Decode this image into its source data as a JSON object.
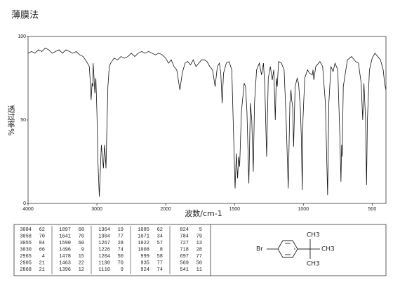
{
  "title": "薄膜法",
  "chart_data": {
    "type": "line",
    "x_label": "波数/cm-1",
    "y_label": "透过率%",
    "xlim": [
      4000,
      400
    ],
    "x_scale_break": 2000,
    "xticks": [
      4000,
      3000,
      2000,
      1500,
      1000,
      500
    ],
    "ylim": [
      0,
      100
    ],
    "yticks": [
      0,
      50,
      100
    ],
    "color": "#111111",
    "x": [
      4000,
      3950,
      3900,
      3850,
      3800,
      3750,
      3700,
      3650,
      3600,
      3550,
      3500,
      3450,
      3400,
      3350,
      3300,
      3250,
      3200,
      3150,
      3110,
      3095,
      3084,
      3070,
      3058,
      3055,
      3045,
      3030,
      3015,
      3000,
      2985,
      2965,
      2950,
      2935,
      2920,
      2905,
      2890,
      2880,
      2868,
      2855,
      2840,
      2820,
      2800,
      2750,
      2700,
      2650,
      2600,
      2550,
      2500,
      2450,
      2400,
      2350,
      2300,
      2250,
      2200,
      2150,
      2100,
      2050,
      2000,
      1980,
      1960,
      1940,
      1920,
      1897,
      1880,
      1860,
      1840,
      1820,
      1800,
      1780,
      1760,
      1740,
      1720,
      1700,
      1680,
      1660,
      1641,
      1625,
      1610,
      1600,
      1590,
      1580,
      1560,
      1540,
      1520,
      1510,
      1496,
      1487,
      1478,
      1470,
      1463,
      1450,
      1430,
      1420,
      1410,
      1396,
      1385,
      1375,
      1364,
      1355,
      1340,
      1320,
      1304,
      1290,
      1280,
      1267,
      1255,
      1240,
      1226,
      1215,
      1204,
      1197,
      1190,
      1180,
      1160,
      1140,
      1125,
      1110,
      1098,
      1090,
      1085,
      1078,
      1071,
      1060,
      1045,
      1035,
      1022,
      1015,
      1008,
      1003,
      999,
      990,
      970,
      955,
      935,
      930,
      924,
      910,
      880,
      860,
      840,
      824,
      815,
      800,
      784,
      770,
      750,
      735,
      727,
      722,
      718,
      710,
      697,
      680,
      650,
      620,
      600,
      580,
      569,
      560,
      548,
      541,
      535,
      520,
      500,
      480,
      460,
      440,
      420,
      410,
      400
    ],
    "values": [
      90,
      91,
      90,
      92,
      91,
      93,
      92,
      90,
      91,
      92,
      90,
      92,
      91,
      90,
      91,
      89,
      88,
      85,
      82,
      72,
      62,
      72,
      70,
      84,
      78,
      66,
      75,
      55,
      25,
      4,
      20,
      35,
      28,
      21,
      35,
      30,
      21,
      45,
      70,
      82,
      84,
      87,
      86,
      88,
      87,
      88,
      90,
      88,
      90,
      91,
      90,
      91,
      90,
      89,
      90,
      89,
      87,
      84,
      86,
      82,
      80,
      68,
      78,
      84,
      85,
      83,
      86,
      82,
      84,
      86,
      86,
      85,
      82,
      80,
      70,
      82,
      84,
      78,
      60,
      78,
      84,
      85,
      80,
      50,
      9,
      30,
      15,
      28,
      22,
      55,
      72,
      70,
      55,
      12,
      60,
      50,
      19,
      60,
      80,
      84,
      77,
      84,
      70,
      28,
      75,
      82,
      74,
      80,
      50,
      75,
      70,
      85,
      84,
      80,
      50,
      9,
      60,
      68,
      62,
      58,
      34,
      70,
      75,
      72,
      57,
      40,
      8,
      50,
      58,
      75,
      80,
      78,
      77,
      80,
      74,
      82,
      85,
      82,
      60,
      5,
      60,
      82,
      79,
      84,
      80,
      40,
      13,
      35,
      28,
      70,
      77,
      86,
      88,
      85,
      84,
      72,
      50,
      72,
      50,
      11,
      50,
      80,
      87,
      90,
      88,
      86,
      80,
      72,
      68
    ]
  },
  "peak_table": [
    [
      [
        3084,
        62
      ],
      [
        3058,
        70
      ],
      [
        3055,
        84
      ],
      [
        3030,
        66
      ],
      [
        2965,
        4
      ],
      [
        2905,
        21
      ],
      [
        2868,
        21
      ]
    ],
    [
      [
        1897,
        68
      ],
      [
        1641,
        70
      ],
      [
        1590,
        60
      ],
      [
        1496,
        9
      ],
      [
        1478,
        15
      ],
      [
        1463,
        22
      ],
      [
        1396,
        12
      ]
    ],
    [
      [
        1364,
        19
      ],
      [
        1304,
        77
      ],
      [
        1267,
        28
      ],
      [
        1226,
        74
      ],
      [
        1204,
        50
      ],
      [
        1190,
        70
      ],
      [
        1110,
        9
      ]
    ],
    [
      [
        1085,
        62
      ],
      [
        1071,
        34
      ],
      [
        1022,
        57
      ],
      [
        1008,
        8
      ],
      [
        999,
        58
      ],
      [
        935,
        77
      ],
      [
        924,
        74
      ]
    ],
    [
      [
        824,
        5
      ],
      [
        784,
        79
      ],
      [
        727,
        13
      ],
      [
        718,
        28
      ],
      [
        697,
        77
      ],
      [
        569,
        50
      ],
      [
        541,
        11
      ]
    ]
  ],
  "structure": {
    "labels": [
      "Br",
      "CH3",
      "CH3",
      "CH3"
    ]
  }
}
